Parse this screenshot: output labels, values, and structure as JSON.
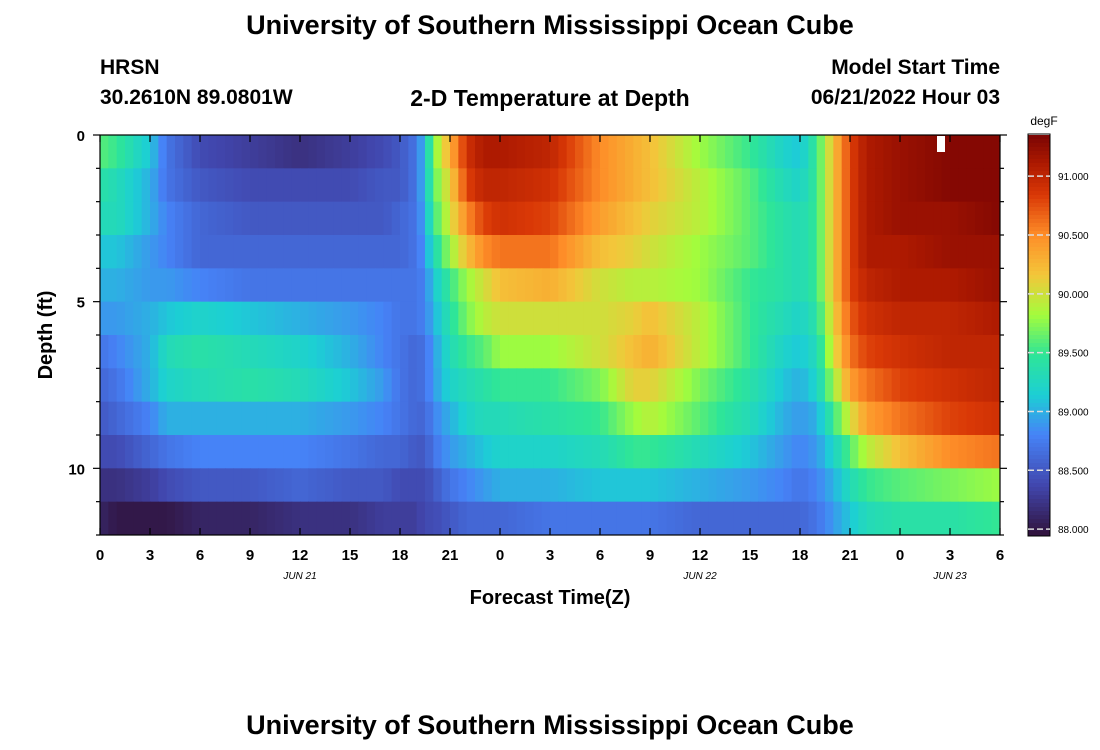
{
  "page": {
    "title": "University of Southern Mississippi Ocean Cube",
    "footer_title": "University of Southern Mississippi Ocean Cube"
  },
  "header": {
    "station": "HRSN",
    "coords": "30.2610N  89.0801W",
    "plot_title": "2-D Temperature at Depth",
    "model_label": "Model Start Time",
    "model_time": "06/21/2022 Hour 03"
  },
  "chart_data": {
    "type": "heatmap",
    "title": "2-D Temperature at Depth",
    "xlabel": "Forecast Time(Z)",
    "ylabel": "Depth (ft)",
    "x_tick_labels": [
      "0",
      "3",
      "6",
      "9",
      "12",
      "15",
      "18",
      "21",
      "0",
      "3",
      "6",
      "9",
      "12",
      "15",
      "18",
      "21",
      "0",
      "3",
      "6"
    ],
    "x_range_hours": [
      0,
      54
    ],
    "date_labels": [
      {
        "label": "JUN 21",
        "hour": 12
      },
      {
        "label": "JUN 22",
        "hour": 36
      },
      {
        "label": "JUN 23",
        "hour": 51
      }
    ],
    "y_tick_labels": [
      "0",
      "5",
      "10"
    ],
    "y_range_ft": [
      0,
      12
    ],
    "colorbar": {
      "unit": "degF",
      "min": 87.95,
      "max": 91.35,
      "tick_labels": [
        "91.000",
        "90.500",
        "90.000",
        "89.500",
        "89.000",
        "88.500",
        "88.000"
      ],
      "tick_values": [
        91.0,
        90.5,
        90.0,
        89.5,
        89.0,
        88.5,
        88.0
      ]
    },
    "depth_levels_ft": [
      0.5,
      1.5,
      2.5,
      3.5,
      4.5,
      5.5,
      6.5,
      7.5,
      8.5,
      9.5,
      10.5,
      11.5
    ],
    "profile_hours": [
      0,
      1,
      3,
      4,
      6,
      9,
      12,
      15,
      17,
      18,
      19,
      19.5,
      20,
      21,
      22,
      23,
      24,
      27,
      30,
      32,
      33,
      36,
      39,
      41,
      42,
      43,
      44,
      45,
      46,
      48,
      51,
      54
    ],
    "temperatures_degF": [
      [
        89.6,
        89.5,
        89.1,
        88.7,
        88.4,
        88.3,
        88.2,
        88.3,
        88.4,
        88.5,
        88.7,
        89.1,
        89.7,
        90.3,
        90.9,
        91.1,
        91.1,
        91.0,
        90.5,
        90.3,
        90.2,
        89.8,
        89.5,
        89.2,
        89.1,
        89.5,
        90.2,
        90.8,
        91.1,
        91.2,
        91.3,
        91.3
      ],
      [
        89.4,
        89.3,
        89.0,
        88.7,
        88.5,
        88.4,
        88.4,
        88.4,
        88.5,
        88.5,
        88.7,
        89.1,
        89.6,
        90.1,
        90.8,
        91.0,
        91.0,
        90.9,
        90.5,
        90.3,
        90.2,
        89.9,
        89.6,
        89.3,
        89.2,
        89.5,
        90.2,
        90.8,
        91.1,
        91.2,
        91.3,
        91.3
      ],
      [
        89.3,
        89.3,
        89.0,
        88.8,
        88.6,
        88.5,
        88.5,
        88.5,
        88.5,
        88.6,
        88.7,
        89.0,
        89.5,
        90.0,
        90.5,
        90.8,
        90.9,
        90.8,
        90.4,
        90.2,
        90.1,
        89.9,
        89.6,
        89.4,
        89.3,
        89.5,
        90.2,
        90.8,
        91.1,
        91.2,
        91.2,
        91.3
      ],
      [
        89.1,
        89.1,
        88.9,
        88.8,
        88.6,
        88.6,
        88.6,
        88.6,
        88.6,
        88.6,
        88.7,
        88.9,
        89.3,
        89.8,
        90.2,
        90.5,
        90.6,
        90.6,
        90.2,
        90.1,
        90.0,
        89.8,
        89.6,
        89.4,
        89.3,
        89.5,
        90.2,
        90.8,
        91.1,
        91.1,
        91.2,
        91.2
      ],
      [
        89.0,
        89.0,
        88.9,
        88.9,
        88.8,
        88.7,
        88.7,
        88.7,
        88.7,
        88.7,
        88.7,
        88.8,
        89.1,
        89.5,
        89.8,
        90.0,
        90.2,
        90.3,
        90.0,
        89.9,
        89.9,
        89.8,
        89.5,
        89.4,
        89.3,
        89.5,
        90.2,
        90.8,
        91.0,
        91.1,
        91.1,
        91.2
      ],
      [
        88.9,
        88.9,
        89.0,
        89.1,
        89.2,
        89.1,
        89.0,
        88.9,
        88.8,
        88.7,
        88.7,
        88.8,
        89.0,
        89.4,
        89.7,
        89.9,
        90.0,
        90.0,
        90.0,
        90.1,
        90.2,
        89.9,
        89.5,
        89.3,
        89.2,
        89.4,
        90.1,
        90.7,
        90.9,
        91.0,
        91.0,
        91.1
      ],
      [
        88.7,
        88.8,
        89.0,
        89.3,
        89.4,
        89.3,
        89.2,
        89.0,
        88.8,
        88.7,
        88.6,
        88.7,
        88.9,
        89.3,
        89.5,
        89.6,
        89.8,
        89.8,
        90.0,
        90.2,
        90.3,
        89.9,
        89.5,
        89.2,
        89.1,
        89.3,
        90.0,
        90.6,
        90.8,
        90.9,
        91.0,
        91.0
      ],
      [
        88.6,
        88.7,
        89.0,
        89.2,
        89.3,
        89.4,
        89.3,
        89.1,
        88.9,
        88.7,
        88.6,
        88.7,
        88.9,
        89.2,
        89.3,
        89.4,
        89.5,
        89.5,
        89.7,
        90.1,
        90.1,
        89.7,
        89.4,
        89.1,
        89.0,
        89.2,
        89.8,
        90.4,
        90.6,
        90.8,
        90.9,
        91.0
      ],
      [
        88.5,
        88.6,
        88.8,
        89.0,
        89.0,
        89.0,
        89.0,
        88.9,
        88.8,
        88.7,
        88.6,
        88.6,
        88.8,
        89.0,
        89.2,
        89.3,
        89.3,
        89.4,
        89.5,
        89.8,
        89.9,
        89.6,
        89.3,
        89.0,
        88.9,
        89.0,
        89.5,
        90.0,
        90.4,
        90.6,
        90.8,
        90.9
      ],
      [
        88.4,
        88.4,
        88.6,
        88.7,
        88.8,
        88.8,
        88.8,
        88.7,
        88.6,
        88.6,
        88.5,
        88.5,
        88.7,
        88.9,
        89.0,
        89.1,
        89.2,
        89.2,
        89.3,
        89.5,
        89.5,
        89.3,
        89.1,
        88.9,
        88.8,
        88.9,
        89.2,
        89.6,
        89.9,
        90.2,
        90.5,
        90.6
      ],
      [
        88.2,
        88.2,
        88.3,
        88.4,
        88.5,
        88.5,
        88.6,
        88.5,
        88.5,
        88.4,
        88.4,
        88.4,
        88.5,
        88.7,
        88.8,
        88.9,
        89.0,
        89.0,
        89.1,
        89.1,
        89.1,
        89.0,
        88.9,
        88.8,
        88.7,
        88.8,
        89.0,
        89.3,
        89.5,
        89.6,
        89.7,
        89.8
      ],
      [
        88.1,
        88.0,
        88.0,
        88.0,
        88.1,
        88.1,
        88.2,
        88.2,
        88.3,
        88.3,
        88.3,
        88.4,
        88.4,
        88.5,
        88.6,
        88.6,
        88.6,
        88.7,
        88.7,
        88.7,
        88.7,
        88.6,
        88.6,
        88.6,
        88.6,
        88.7,
        88.9,
        89.1,
        89.3,
        89.4,
        89.4,
        89.5
      ]
    ]
  }
}
